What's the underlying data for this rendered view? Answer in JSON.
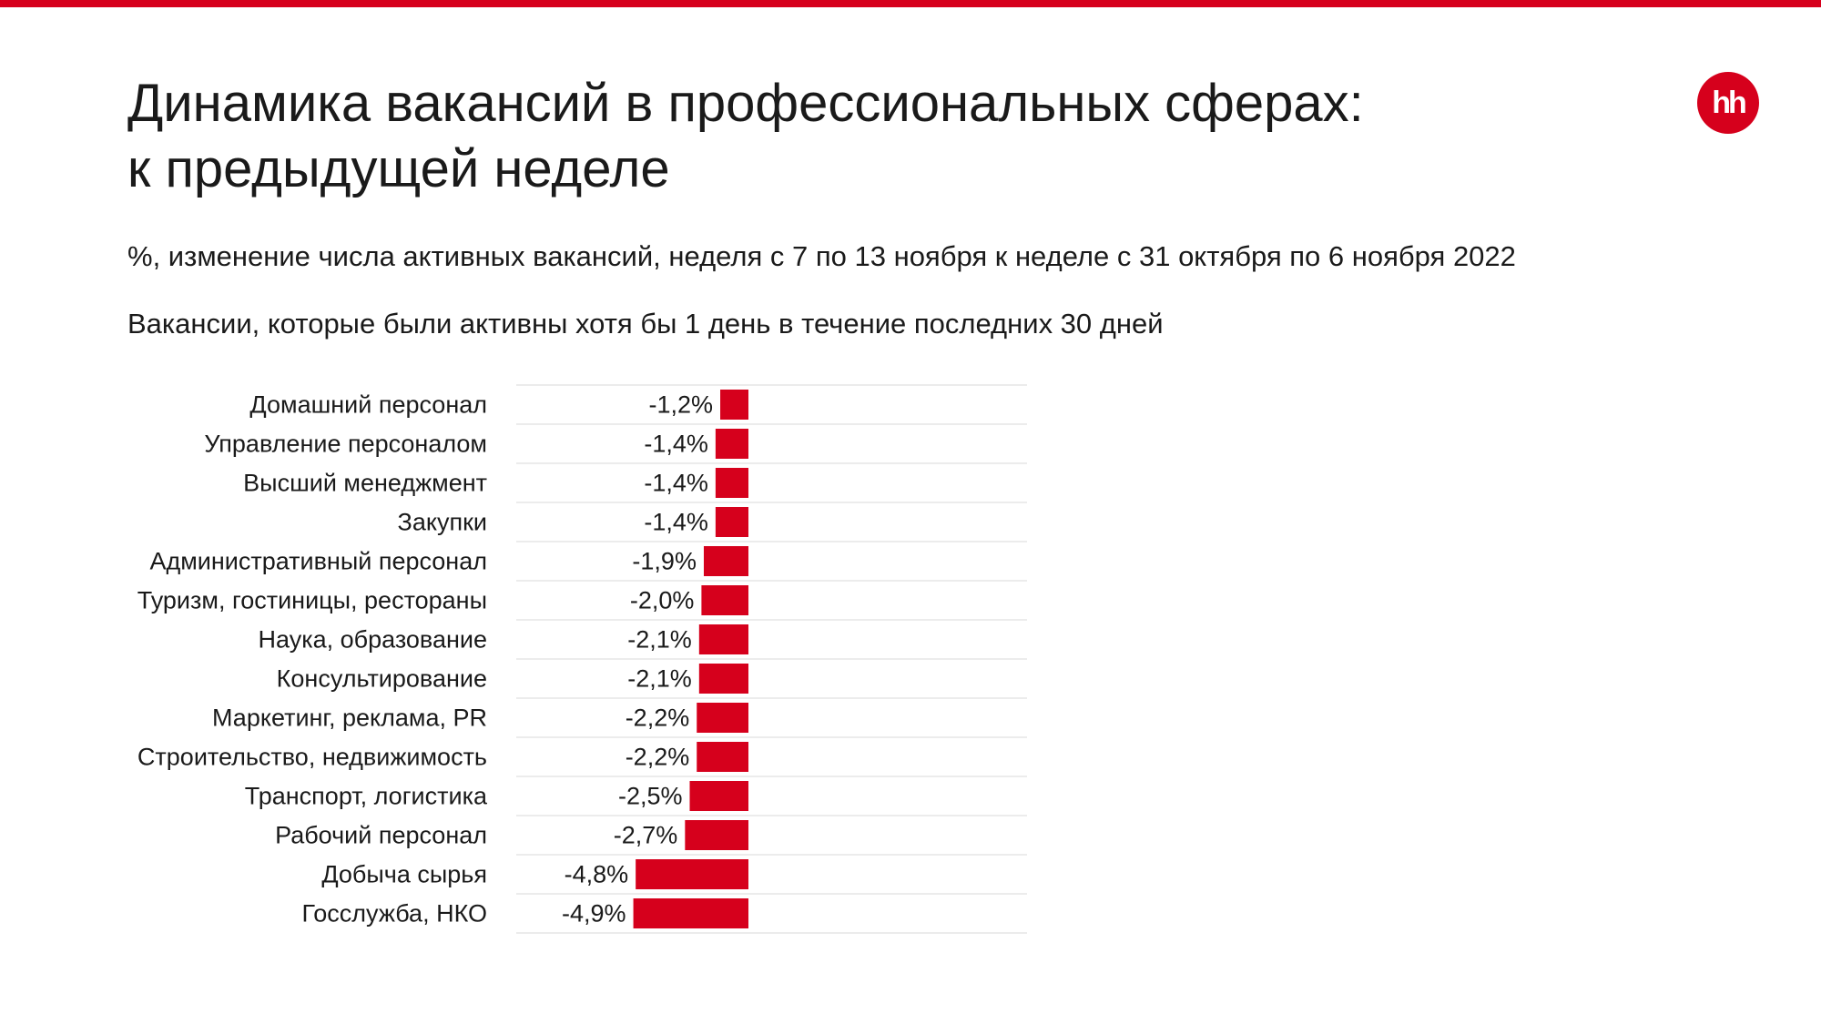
{
  "header": {
    "title": "Динамика вакансий в профессиональных сферах:\nк предыдущей неделе",
    "subtitle": "%, изменение числа активных вакансий, неделя с 7 по 13 ноября к неделе с 31 октября по 6 ноября 2022",
    "note": "Вакансии, которые были активны хотя бы 1 день в течение последних 30 дней",
    "logo_text": "hh"
  },
  "colors": {
    "accent": "#d6001c",
    "text": "#1a1a1a",
    "grid": "#e6e6e6"
  },
  "chart_data": {
    "type": "bar",
    "orientation": "horizontal",
    "categories": [
      "Домашний персонал",
      "Управление персоналом",
      "Высший менеджмент",
      "Закупки",
      "Административный персонал",
      "Туризм, гостиницы, рестораны",
      "Наука, образование",
      "Консультирование",
      "Маркетинг, реклама, PR",
      "Строительство, недвижимость",
      "Транспорт, логистика",
      "Рабочий персонал",
      "Добыча сырья",
      "Госслужба, НКО"
    ],
    "values": [
      -1.2,
      -1.4,
      -1.4,
      -1.4,
      -1.9,
      -2.0,
      -2.1,
      -2.1,
      -2.2,
      -2.2,
      -2.5,
      -2.7,
      -4.8,
      -4.9
    ],
    "value_labels": [
      "-1,2%",
      "-1,4%",
      "-1,4%",
      "-1,4%",
      "-1,9%",
      "-2,0%",
      "-2,1%",
      "-2,1%",
      "-2,2%",
      "-2,2%",
      "-2,5%",
      "-2,7%",
      "-4,8%",
      "-4,9%"
    ],
    "xlim": [
      -5,
      0
    ],
    "grid": true,
    "legend": "none",
    "bar_color": "#d6001c"
  }
}
